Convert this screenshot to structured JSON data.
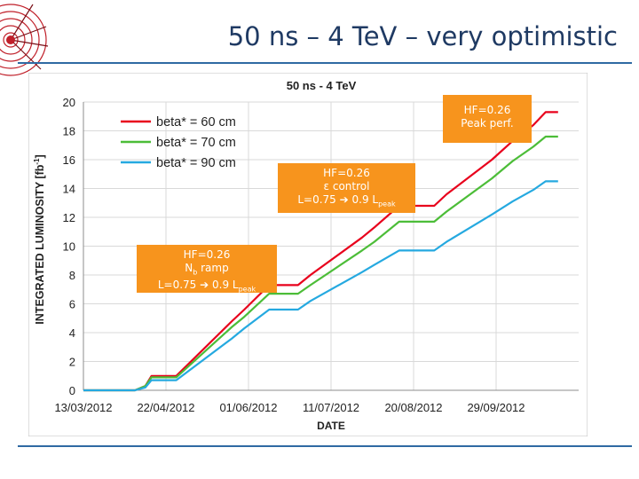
{
  "slide": {
    "title": "50 ns – 4 TeV – very optimistic"
  },
  "colors": {
    "red": "#e8001c",
    "green": "#4cbd38",
    "blue": "#25a9e0",
    "annotation": "#f7941d",
    "accent": "#1f3a63"
  },
  "annotations": [
    {
      "line1": "HF=0.26",
      "line2": "N",
      "line2_sub": "b",
      "line2_rest": " ramp",
      "line3": "L=0.75 ➔ 0.9 L",
      "line3_sub": "peak"
    },
    {
      "line1": "HF=0.26",
      "line2": "ε control",
      "line3": "L=0.75 ➔ 0.9 L",
      "line3_sub": "peak"
    },
    {
      "line1": "HF=0.26",
      "line2": "Peak perf."
    }
  ],
  "chart_data": {
    "type": "line",
    "title": "50 ns - 4 TeV",
    "xlabel": "DATE",
    "ylabel": "INTEGRATED LUMINOSITY [fb",
    "ylabel_sup": "-1",
    "ylabel_end": "]",
    "xlim": [
      0,
      240
    ],
    "ylim": [
      0,
      20
    ],
    "yticks": [
      "0",
      "2",
      "4",
      "6",
      "8",
      "10",
      "12",
      "14",
      "16",
      "18",
      "20"
    ],
    "xticks": [
      {
        "day": 0,
        "label": "13/03/2012"
      },
      {
        "day": 40,
        "label": "22/04/2012"
      },
      {
        "day": 80,
        "label": "01/06/2012"
      },
      {
        "day": 120,
        "label": "11/07/2012"
      },
      {
        "day": 160,
        "label": "20/08/2012"
      },
      {
        "day": 200,
        "label": "29/09/2012"
      }
    ],
    "grid": true,
    "legend_position": "top-left",
    "series": [
      {
        "name": "beta* = 60 cm",
        "color": "#e8001c",
        "x": [
          0,
          25,
          30,
          33,
          45,
          72,
          78,
          90,
          104,
          110,
          135,
          141,
          153,
          170,
          176,
          198,
          208,
          218,
          224,
          230
        ],
        "y": [
          0,
          0,
          0.3,
          1.0,
          1.0,
          4.8,
          5.6,
          7.3,
          7.3,
          8.0,
          10.6,
          11.3,
          12.8,
          12.8,
          13.6,
          16.0,
          17.3,
          18.4,
          19.3,
          19.3
        ]
      },
      {
        "name": "beta* = 70 cm",
        "color": "#4cbd38",
        "x": [
          0,
          25,
          30,
          33,
          45,
          72,
          78,
          90,
          104,
          110,
          135,
          141,
          153,
          170,
          176,
          198,
          208,
          218,
          224,
          230
        ],
        "y": [
          0,
          0,
          0.3,
          0.9,
          0.9,
          4.4,
          5.1,
          6.7,
          6.7,
          7.3,
          9.7,
          10.3,
          11.7,
          11.7,
          12.4,
          14.7,
          15.9,
          16.9,
          17.6,
          17.6
        ]
      },
      {
        "name": "beta* = 90 cm",
        "color": "#25a9e0",
        "x": [
          0,
          25,
          30,
          33,
          45,
          72,
          78,
          90,
          104,
          110,
          135,
          141,
          153,
          170,
          176,
          198,
          208,
          218,
          224,
          230
        ],
        "y": [
          0,
          0,
          0.2,
          0.7,
          0.7,
          3.6,
          4.3,
          5.6,
          5.6,
          6.2,
          8.2,
          8.7,
          9.7,
          9.7,
          10.3,
          12.2,
          13.1,
          13.9,
          14.5,
          14.5
        ]
      }
    ]
  }
}
